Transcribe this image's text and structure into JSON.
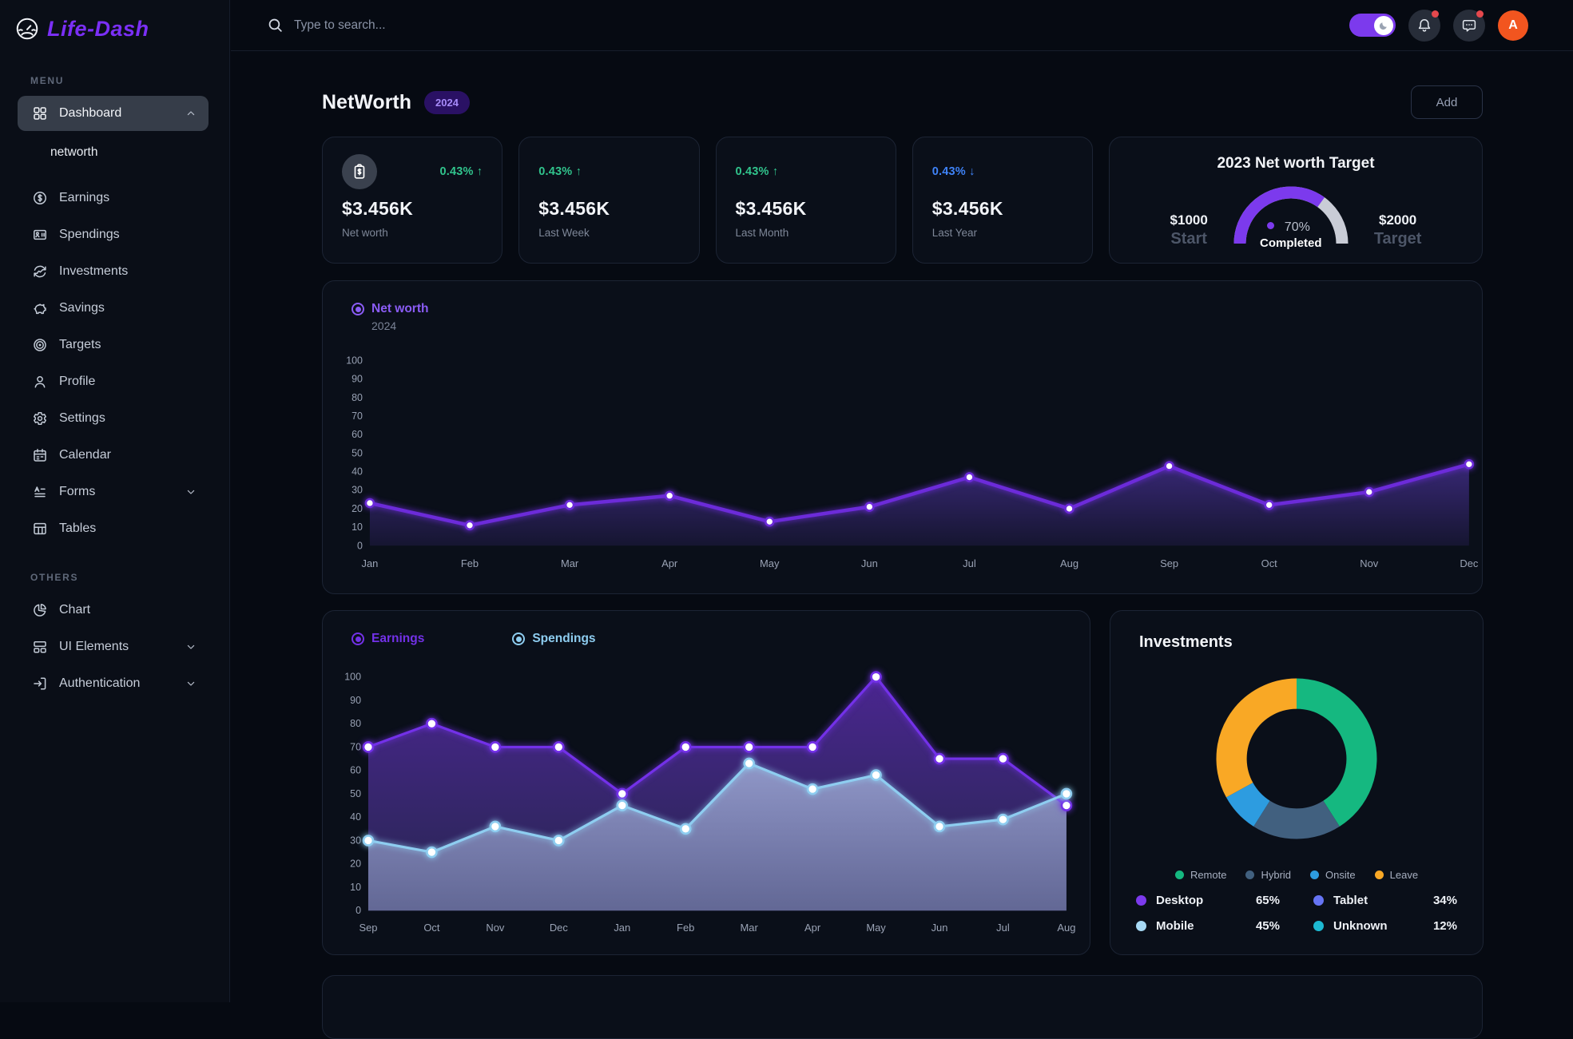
{
  "app": {
    "logo_text": "Life-Dash"
  },
  "glyphs": {
    "up": "↑",
    "down": "↓"
  },
  "topbar": {
    "search_placeholder": "Type to search...",
    "avatar_letter": "A",
    "dark_mode_on": true
  },
  "sidebar": {
    "sections": [
      {
        "label": "MENU",
        "items": [
          {
            "label": "Dashboard",
            "icon": "dashboard-icon",
            "active": true,
            "chevron": "up"
          },
          {
            "label": "networth",
            "sub": true
          },
          {
            "label": "Earnings",
            "icon": "earnings-icon"
          },
          {
            "label": "Spendings",
            "icon": "spendings-icon"
          },
          {
            "label": "Investments",
            "icon": "investments-icon"
          },
          {
            "label": "Savings",
            "icon": "savings-icon"
          },
          {
            "label": "Targets",
            "icon": "targets-icon"
          },
          {
            "label": "Profile",
            "icon": "profile-icon"
          },
          {
            "label": "Settings",
            "icon": "settings-icon"
          },
          {
            "label": "Calendar",
            "icon": "calendar-icon"
          },
          {
            "label": "Forms",
            "icon": "forms-icon",
            "chevron": "down"
          },
          {
            "label": "Tables",
            "icon": "tables-icon"
          }
        ]
      },
      {
        "label": "OTHERS",
        "items": [
          {
            "label": "Chart",
            "icon": "chart-icon"
          },
          {
            "label": "UI Elements",
            "icon": "ui-elements-icon",
            "chevron": "down"
          },
          {
            "label": "Authentication",
            "icon": "authentication-icon",
            "chevron": "down"
          }
        ]
      }
    ]
  },
  "page": {
    "title": "NetWorth",
    "year_badge": "2024",
    "add_button_label": "Add"
  },
  "stat_cards": [
    {
      "value": "$3.456K",
      "label": "Net worth",
      "change": "0.43%",
      "direction": "up",
      "icon": "clipboard-dollar-icon"
    },
    {
      "value": "$3.456K",
      "label": "Last Week",
      "change": "0.43%",
      "direction": "up"
    },
    {
      "value": "$3.456K",
      "label": "Last Month",
      "change": "0.43%",
      "direction": "up"
    },
    {
      "value": "$3.456K",
      "label": "Last Year",
      "change": "0.43%",
      "direction": "down"
    }
  ],
  "target_card": {
    "title": "2023 Net worth Target",
    "start_value": "$1000",
    "start_label": "Start",
    "percent_text": "70%",
    "percent_label": "Completed",
    "target_value": "$2000",
    "target_label": "Target"
  },
  "colors": {
    "accent_purple": "#7c3aed",
    "positive_green": "#31c48d",
    "negative_blue": "#3f83f8",
    "avatar_orange": "#f2551f",
    "badge_bg": "#2a1164",
    "badge_text": "#a78bfa",
    "gauge_track": "#c9ccd6"
  },
  "chart_data": [
    {
      "id": "networth_line",
      "type": "area",
      "legend": {
        "title": "Net worth",
        "subtitle": "2024",
        "color": "#8b5cf6"
      },
      "x": [
        "Jan",
        "Feb",
        "Mar",
        "Apr",
        "May",
        "Jun",
        "Jul",
        "Aug",
        "Sep",
        "Oct",
        "Nov",
        "Dec"
      ],
      "series": [
        {
          "name": "Net worth",
          "color": "#6c2bd9",
          "fill_top": "rgba(124,77,255,0.40)",
          "fill_bottom": "rgba(124,77,255,0.10)",
          "values": [
            23,
            11,
            22,
            27,
            13,
            21,
            37,
            20,
            43,
            22,
            29,
            44
          ]
        }
      ],
      "ylim": [
        0,
        100
      ],
      "ytick_step": 10,
      "grid": false,
      "legend_position": "top-left"
    },
    {
      "id": "earnings_spendings",
      "type": "area",
      "x": [
        "Sep",
        "Oct",
        "Nov",
        "Dec",
        "Jan",
        "Feb",
        "Mar",
        "Apr",
        "May",
        "Jun",
        "Jul",
        "Aug"
      ],
      "series": [
        {
          "name": "Earnings",
          "color": "#7331e8",
          "fill_top": "rgba(86,41,166,0.85)",
          "fill_bottom": "rgba(64,54,128,0.55)",
          "values": [
            70,
            80,
            70,
            70,
            50,
            70,
            70,
            70,
            100,
            65,
            65,
            45
          ]
        },
        {
          "name": "Spendings",
          "color": "#8ecdf0",
          "fill_top": "rgba(165,180,220,0.80)",
          "fill_bottom": "rgba(130,140,185,0.65)",
          "values": [
            30,
            25,
            36,
            30,
            45,
            35,
            63,
            52,
            58,
            36,
            39,
            50
          ]
        }
      ],
      "ylim": [
        0,
        100
      ],
      "ytick_step": 10,
      "grid": false,
      "legend_position": "top-left"
    },
    {
      "id": "investments_donut",
      "type": "donut",
      "title": "Investments",
      "slices": [
        {
          "label": "Remote",
          "value": 41,
          "color": "#15b880"
        },
        {
          "label": "Hybrid",
          "value": 18,
          "color": "#41607f"
        },
        {
          "label": "Onsite",
          "value": 8,
          "color": "#2d9ce0"
        },
        {
          "label": "Leave",
          "value": 33,
          "color": "#f9a825"
        }
      ],
      "stats": [
        {
          "label": "Desktop",
          "value": "65%",
          "color": "#7c3aed"
        },
        {
          "label": "Tablet",
          "value": "34%",
          "color": "#6674f4"
        },
        {
          "label": "Mobile",
          "value": "45%",
          "color": "#a7d9f5"
        },
        {
          "label": "Unknown",
          "value": "12%",
          "color": "#1db9d2"
        }
      ]
    },
    {
      "id": "target_gauge",
      "type": "gauge",
      "percent": 70,
      "track_color": "#c9ccd6",
      "value_color": "#7c3aed"
    }
  ]
}
